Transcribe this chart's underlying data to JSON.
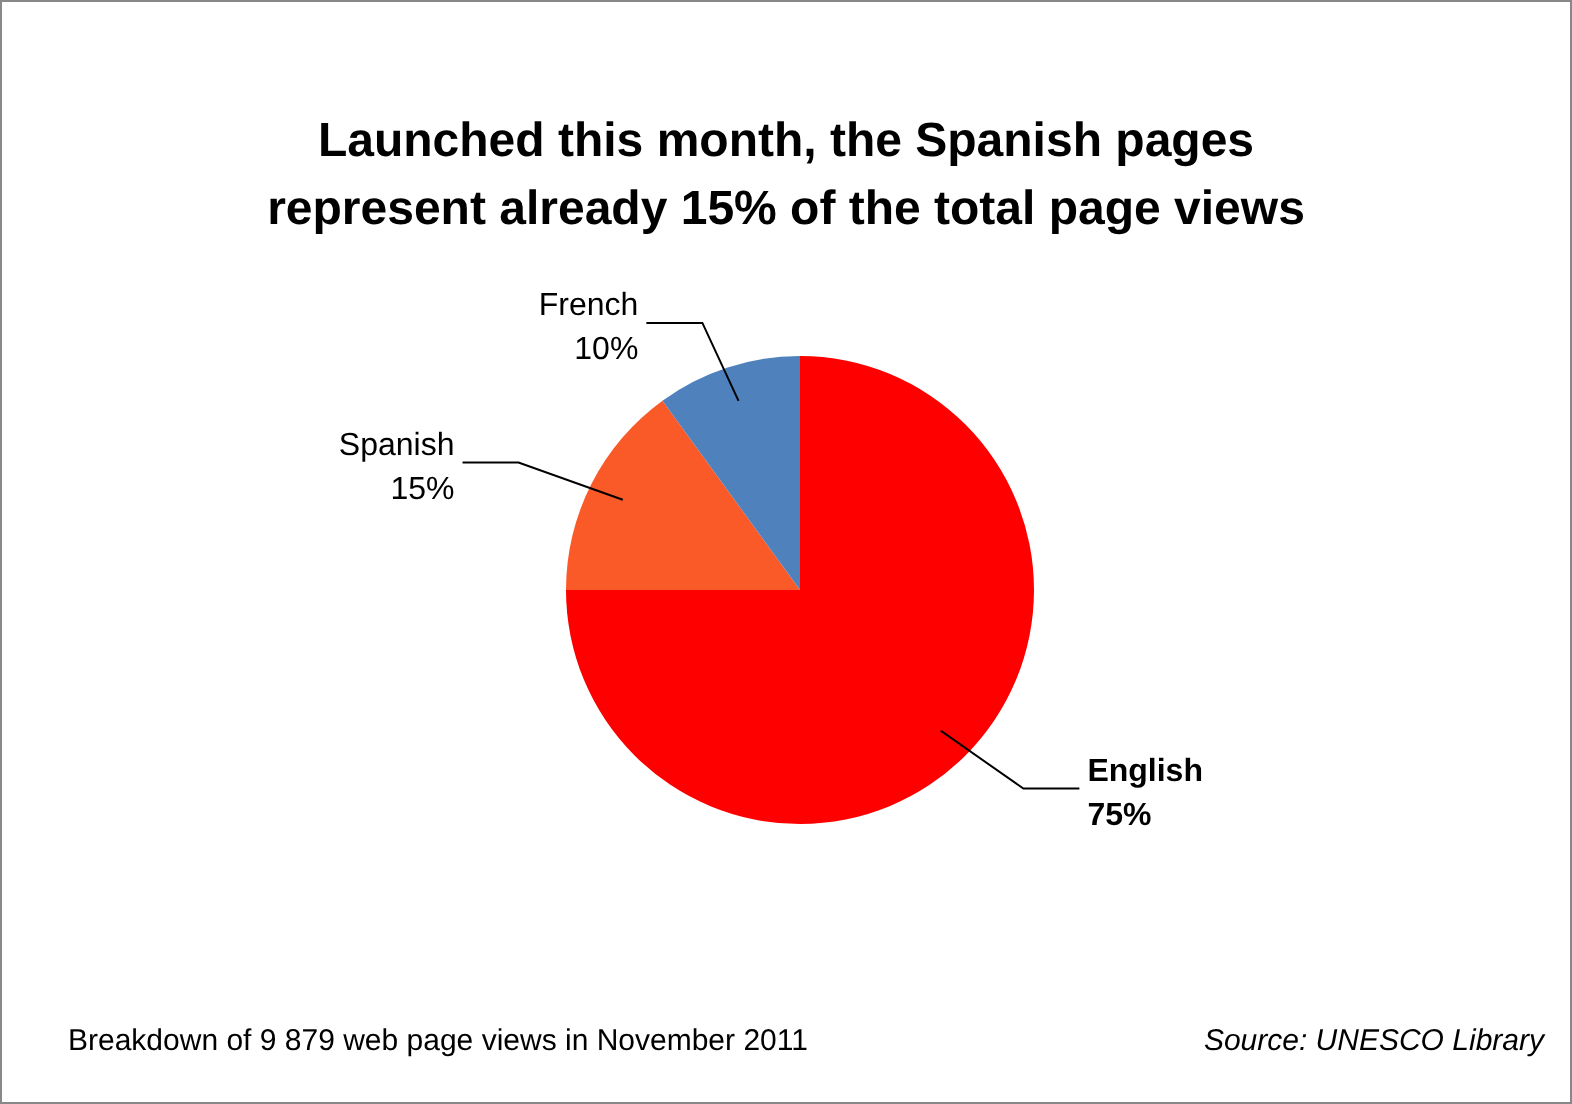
{
  "chart_data": {
    "type": "pie",
    "title": "Launched this month, the Spanish pages represent already 15% of the total page views",
    "categories": [
      "English",
      "Spanish",
      "French"
    ],
    "values": [
      75,
      15,
      10
    ],
    "colors": [
      "#ff0000",
      "#fa5a28",
      "#4f81bd"
    ],
    "value_labels": [
      "75%",
      "15%",
      "10%"
    ],
    "annotations": [
      "Breakdown of 9 879 web page views in November 2011",
      "Source: UNESCO Library"
    ]
  }
}
